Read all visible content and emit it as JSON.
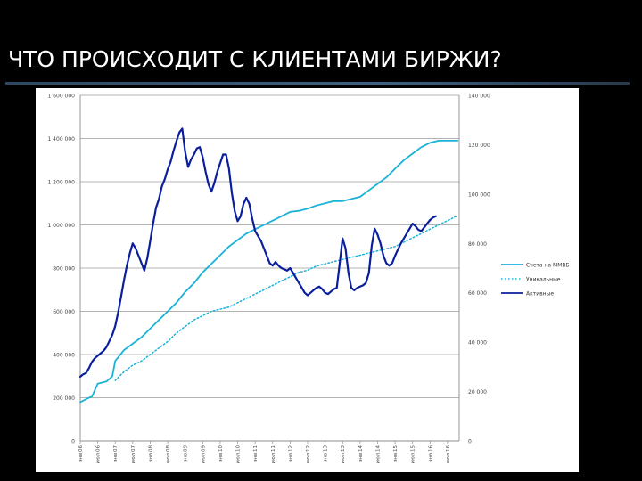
{
  "slide": {
    "title": "ЧТО ПРОИСХОДИТ С КЛИЕНТАМИ БИРЖИ?"
  },
  "colors": {
    "background": "#000000",
    "title": "#ffffff",
    "accent_rule": "#3d6183",
    "series_total": "#1ab2d8",
    "series_unique": "#1ab2d8",
    "series_active": "#0a1f9c"
  },
  "chart_data": {
    "type": "line",
    "title": "",
    "grid": true,
    "legend_position": "right",
    "y_left": {
      "min": 0,
      "max": 1600000,
      "ticks": [
        0,
        200000,
        400000,
        600000,
        800000,
        1000000,
        1200000,
        1400000,
        1600000
      ],
      "tick_labels": [
        "0",
        "200 000",
        "400 000",
        "600 000",
        "800 000",
        "1 000 000",
        "1 200 000",
        "1 400 000",
        "1 600 000"
      ]
    },
    "y_right": {
      "min": 0,
      "max": 140000,
      "ticks": [
        0,
        20000,
        40000,
        60000,
        80000,
        100000,
        120000,
        140000
      ],
      "tick_labels": [
        "0",
        "20 000",
        "40 000",
        "60 000",
        "80 000",
        "100 000",
        "120 000",
        "140 000"
      ]
    },
    "x_tick_labels": [
      "янв.06",
      "апр.06",
      "июл.06",
      "окт.06",
      "янв.07",
      "апр.07",
      "июл.07",
      "окт.07",
      "янв.08",
      "апр.08",
      "июл.08",
      "окт.08",
      "янв.09",
      "апр.09",
      "июл.09",
      "окт.09",
      "янв.10",
      "апр.10",
      "июл.10",
      "окт.10",
      "янв.11",
      "апр.11",
      "июл.11",
      "окт.11",
      "янв.12",
      "апр.12",
      "июл.12",
      "окт.12",
      "янв.13",
      "апр.13",
      "июл.13",
      "окт.13",
      "янв.14",
      "апр.14",
      "июл.14",
      "окт.14",
      "янв.15",
      "апр.15",
      "июл.15",
      "окт.15",
      "янв.16",
      "апр.16",
      "июл.16",
      "окт.16"
    ],
    "x_tick_labels_visible": [
      "янв.06",
      "июл.06",
      "янв.07",
      "июл.07",
      "янв.08",
      "июл.08",
      "янв.09",
      "июл.09",
      "янв.10",
      "июл.10",
      "янв.11",
      "июл.11",
      "янв.12",
      "июл.12",
      "янв.13",
      "июл.13",
      "янв.14",
      "июл.14",
      "янв.15",
      "июл.15",
      "янв.16",
      "июл.16"
    ],
    "series": [
      {
        "name": "Счета на ММВБ",
        "axis": "left",
        "style": "solid",
        "color": "#1ab2d8",
        "x": [
          0,
          3,
          4,
          6,
          9,
          11,
          12,
          15,
          18,
          21,
          24,
          27,
          30,
          33,
          36,
          39,
          42,
          45,
          48,
          51,
          54,
          57,
          60,
          63,
          66,
          69,
          72,
          75,
          78,
          81,
          84,
          87,
          90,
          93,
          96,
          99,
          102,
          105,
          108,
          111,
          114,
          117,
          120,
          123,
          126,
          129,
          129.5
        ],
        "values": [
          180000,
          200000,
          205000,
          265000,
          275000,
          300000,
          370000,
          420000,
          450000,
          480000,
          520000,
          560000,
          600000,
          640000,
          690000,
          730000,
          780000,
          820000,
          860000,
          900000,
          930000,
          960000,
          980000,
          1000000,
          1020000,
          1040000,
          1060000,
          1065000,
          1075000,
          1090000,
          1100000,
          1110000,
          1110000,
          1120000,
          1130000,
          1160000,
          1190000,
          1220000,
          1260000,
          1300000,
          1330000,
          1360000,
          1380000,
          1390000,
          1390000,
          1390000,
          1390000
        ]
      },
      {
        "name": "Уникальные",
        "axis": "left",
        "style": "dotted",
        "color": "#1ab2d8",
        "x": [
          12,
          15,
          18,
          21,
          24,
          27,
          30,
          33,
          36,
          39,
          42,
          45,
          48,
          51,
          54,
          57,
          60,
          63,
          66,
          69,
          72,
          75,
          78,
          81,
          84,
          87,
          90,
          93,
          96,
          99,
          102,
          105,
          108,
          111,
          114,
          117,
          120,
          123,
          126,
          129
        ],
        "values": [
          280000,
          320000,
          350000,
          370000,
          400000,
          430000,
          460000,
          500000,
          530000,
          560000,
          580000,
          600000,
          610000,
          620000,
          640000,
          660000,
          680000,
          700000,
          720000,
          740000,
          760000,
          780000,
          790000,
          810000,
          820000,
          830000,
          840000,
          850000,
          860000,
          870000,
          880000,
          890000,
          900000,
          920000,
          940000,
          960000,
          980000,
          1000000,
          1020000,
          1040000
        ]
      },
      {
        "name": "Активные",
        "axis": "right",
        "style": "solid",
        "color": "#0a1f9c",
        "x": [
          0,
          1,
          2,
          3,
          4,
          5,
          6,
          7,
          8,
          9,
          10,
          11,
          12,
          13,
          14,
          15,
          16,
          17,
          18,
          19,
          20,
          21,
          22,
          23,
          24,
          25,
          26,
          27,
          28,
          29,
          30,
          31,
          32,
          33,
          34,
          35,
          36,
          37,
          38,
          39,
          40,
          41,
          42,
          43,
          44,
          45,
          46,
          47,
          48,
          49,
          50,
          51,
          52,
          53,
          54,
          55,
          56,
          57,
          58,
          59,
          60,
          61,
          62,
          63,
          64,
          65,
          66,
          67,
          68,
          69,
          70,
          71,
          72,
          73,
          74,
          75,
          76,
          77,
          78,
          79,
          80,
          81,
          82,
          83,
          84,
          85,
          86,
          87,
          88,
          89,
          90,
          91,
          92,
          93,
          94,
          95,
          96,
          97,
          98,
          99,
          100,
          101,
          102,
          103,
          104,
          105,
          106,
          107,
          108,
          109,
          110,
          111,
          112,
          113,
          114,
          115,
          116,
          117,
          118,
          119,
          120,
          121,
          122
        ],
        "values": [
          26000,
          27000,
          27500,
          29500,
          32000,
          33500,
          34500,
          35500,
          36500,
          38000,
          40500,
          43000,
          46500,
          52000,
          58500,
          65000,
          71000,
          76000,
          80000,
          78000,
          75000,
          72000,
          69000,
          74000,
          81000,
          88000,
          94500,
          98000,
          103000,
          106000,
          110000,
          113000,
          117500,
          121500,
          125000,
          126500,
          117000,
          111000,
          114000,
          116000,
          118500,
          119000,
          115000,
          109000,
          104000,
          101000,
          104500,
          109000,
          112500,
          116000,
          116000,
          110500,
          100500,
          93000,
          89000,
          91000,
          96000,
          98500,
          96000,
          90000,
          85000,
          83000,
          81000,
          78000,
          75000,
          72000,
          71000,
          72500,
          71000,
          70000,
          69500,
          69000,
          70000,
          68000,
          66000,
          64000,
          62000,
          60000,
          59000,
          60000,
          61000,
          62000,
          62500,
          61500,
          60000,
          59500,
          60500,
          61500,
          62000,
          72000,
          82000,
          78000,
          68000,
          62000,
          61000,
          62000,
          62500,
          63000,
          64000,
          68000,
          79000,
          86000,
          83500,
          80000,
          75000,
          72000,
          71000,
          72000,
          75000,
          77500,
          80000,
          82000,
          84000,
          86000,
          88000,
          87000,
          85500,
          85000,
          86500,
          88000,
          89500,
          90500,
          91000
        ]
      }
    ]
  }
}
